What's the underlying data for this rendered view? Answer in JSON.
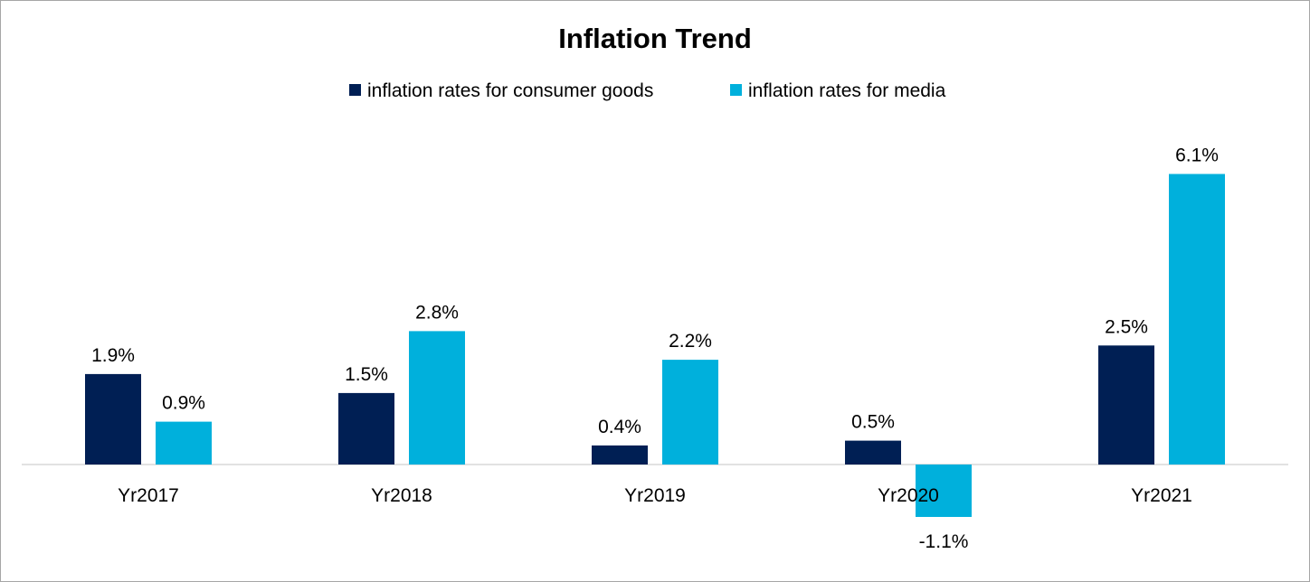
{
  "chart_data": {
    "type": "bar",
    "title": "Inflation Trend",
    "xlabel": "",
    "ylabel": "",
    "categories": [
      "Yr2017",
      "Yr2018",
      "Yr2019",
      "Yr2020",
      "Yr2021"
    ],
    "series": [
      {
        "name": "inflation rates for consumer goods",
        "color": "#001f54",
        "values": [
          1.9,
          1.5,
          0.4,
          0.5,
          2.5
        ],
        "labels": [
          "1.9%",
          "1.5%",
          "0.4%",
          "0.5%",
          "2.5%"
        ]
      },
      {
        "name": "inflation rates for media",
        "color": "#00b0dc",
        "values": [
          0.9,
          2.8,
          2.2,
          -1.1,
          6.1
        ],
        "labels": [
          "0.9%",
          "2.8%",
          "2.2%",
          "-1.1%",
          "6.1%"
        ]
      }
    ],
    "ylim": [
      -1.1,
      6.1
    ],
    "grid": false,
    "y_axis_visible": false,
    "legend_position": "top",
    "axis_line_color": "#d9d9d9"
  }
}
